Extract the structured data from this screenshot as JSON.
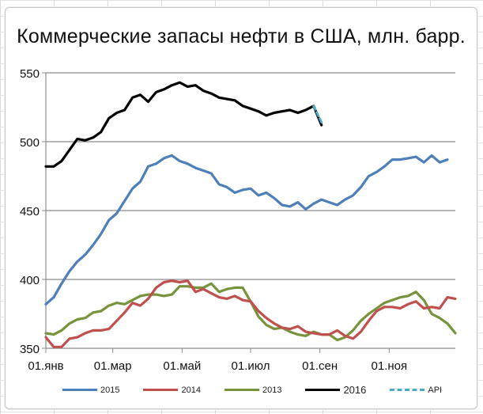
{
  "chart_data": {
    "type": "line",
    "title": "Коммерческие запасы нефти в США, млн. барр.",
    "xlabel": "",
    "ylabel": "",
    "ylim": [
      350,
      550
    ],
    "yticks": [
      350,
      400,
      450,
      500,
      550
    ],
    "grid": {
      "horizontal": true,
      "vertical": false
    },
    "x_tick_labels": [
      "01.янв",
      "01.мар",
      "01.май",
      "01.июл",
      "01.сен",
      "01.ноя"
    ],
    "x_unit": "week_of_year",
    "legend_position": "bottom",
    "series": [
      {
        "name": "2015",
        "color": "#4F7FB8",
        "style": "solid",
        "values": [
          382,
          387,
          397,
          406,
          413,
          418,
          425,
          433,
          443,
          448,
          457,
          466,
          471,
          482,
          484,
          488,
          490,
          486,
          484,
          481,
          479,
          477,
          469,
          467,
          463,
          465,
          466,
          461,
          463,
          459,
          454,
          453,
          456,
          451,
          455,
          458,
          456,
          454,
          458,
          461,
          467,
          475,
          478,
          482,
          487,
          487,
          488,
          489,
          485,
          490,
          485,
          487
        ]
      },
      {
        "name": "2014",
        "color": "#C0504D",
        "style": "solid",
        "values": [
          358,
          351,
          351,
          357,
          358,
          361,
          363,
          363,
          364,
          370,
          376,
          383,
          381,
          386,
          394,
          398,
          399,
          398,
          399,
          391,
          393,
          390,
          387,
          386,
          388,
          385,
          384,
          377,
          372,
          368,
          365,
          364,
          366,
          362,
          361,
          360,
          360,
          363,
          359,
          357,
          362,
          370,
          377,
          380,
          380,
          379,
          382,
          384,
          379,
          380,
          379,
          387,
          386
        ]
      },
      {
        "name": "2013",
        "color": "#77933C",
        "style": "solid",
        "values": [
          361,
          360,
          363,
          368,
          371,
          372,
          376,
          377,
          381,
          383,
          382,
          385,
          388,
          389,
          389,
          388,
          389,
          395,
          395,
          394,
          394,
          397,
          391,
          393,
          394,
          394,
          384,
          373,
          367,
          364,
          365,
          362,
          360,
          359,
          362,
          360,
          360,
          356,
          358,
          363,
          370,
          375,
          379,
          383,
          385,
          387,
          388,
          391,
          385,
          375,
          372,
          368,
          361
        ]
      },
      {
        "name": "2016",
        "color": "#000000",
        "style": "solid",
        "values": [
          482,
          482,
          486,
          494,
          502,
          501,
          503,
          507,
          517,
          521,
          523,
          532,
          534,
          529,
          536,
          538,
          541,
          543,
          540,
          541,
          537,
          535,
          532,
          531,
          530,
          526,
          524,
          522,
          519,
          521,
          522,
          523,
          521,
          523,
          526,
          512
        ]
      },
      {
        "name": "API",
        "color": "#4BACC6",
        "style": "dashed",
        "start_week": 34,
        "values": [
          526,
          514
        ]
      }
    ]
  },
  "legend": {
    "items": [
      {
        "label": "2015",
        "color": "#4F7FB8",
        "dashed": false
      },
      {
        "label": "2014",
        "color": "#C0504D",
        "dashed": false
      },
      {
        "label": "2013",
        "color": "#77933C",
        "dashed": false
      },
      {
        "label": "2016",
        "color": "#000000",
        "dashed": false
      },
      {
        "label": "API",
        "color": "#4BACC6",
        "dashed": true
      }
    ]
  }
}
